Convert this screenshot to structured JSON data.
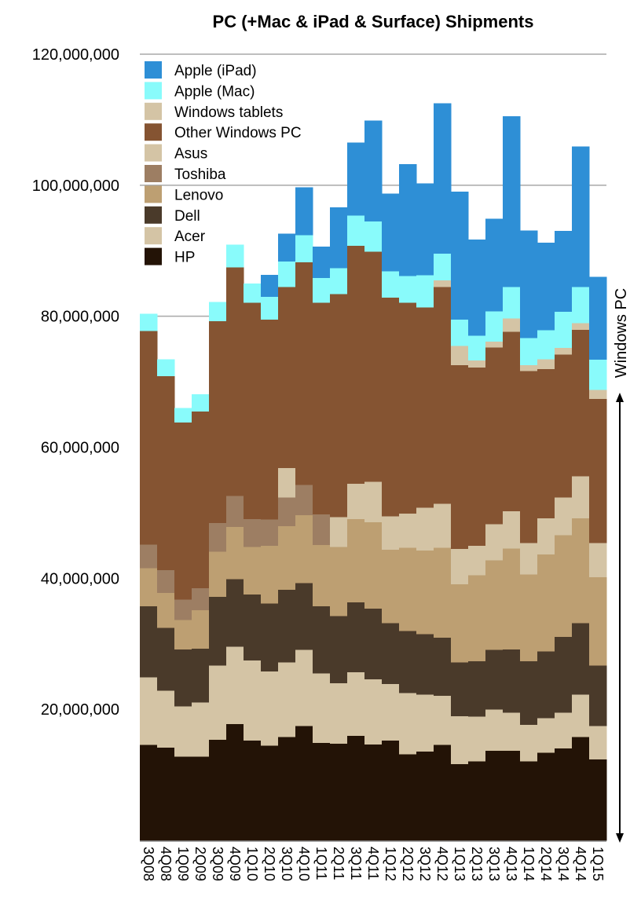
{
  "chart_data": {
    "type": "bar",
    "stacked": true,
    "title": "PC (+Mac & iPad & Surface) Shipments",
    "xlabel": "",
    "ylabel": "",
    "ylim": [
      0,
      120000000
    ],
    "yticks": [
      20000000,
      40000000,
      60000000,
      80000000,
      100000000,
      120000000
    ],
    "ytick_labels": [
      "20,000,000",
      "40,000,000",
      "60,000,000",
      "80,000,000",
      "100,000,000",
      "120,000,000"
    ],
    "grid": true,
    "legend_position": "top-left",
    "categories": [
      "3Q08",
      "4Q08",
      "1Q09",
      "2Q09",
      "3Q09",
      "4Q09",
      "1Q10",
      "2Q10",
      "3Q10",
      "4Q10",
      "1Q11",
      "2Q11",
      "3Q11",
      "4Q11",
      "1Q12",
      "2Q12",
      "3Q12",
      "4Q12",
      "1Q13",
      "2Q13",
      "3Q13",
      "4Q13",
      "1Q14",
      "2Q14",
      "3Q14",
      "4Q14",
      "1Q15"
    ],
    "series": [
      {
        "name": "HP",
        "color": "#231306",
        "values": [
          14600000,
          14200000,
          12800000,
          12800000,
          15400000,
          17800000,
          15300000,
          14500000,
          15800000,
          17500000,
          14900000,
          14800000,
          16000000,
          14700000,
          15300000,
          13200000,
          13600000,
          14600000,
          11700000,
          12100000,
          13700000,
          13700000,
          12100000,
          13400000,
          14100000,
          15800000,
          12400000
        ]
      },
      {
        "name": "Acer",
        "color": "#d4c4a5",
        "values": [
          10300000,
          8700000,
          7700000,
          8300000,
          11300000,
          11800000,
          12200000,
          11300000,
          11400000,
          11600000,
          10600000,
          9200000,
          9700000,
          9900000,
          8600000,
          9300000,
          8700000,
          7500000,
          7300000,
          6800000,
          6300000,
          5800000,
          5600000,
          5300000,
          5400000,
          6500000,
          5100000
        ]
      },
      {
        "name": "Dell",
        "color": "#4a3a2a",
        "values": [
          10900000,
          9600000,
          8700000,
          8200000,
          10500000,
          10300000,
          10100000,
          10400000,
          11100000,
          10200000,
          10300000,
          10300000,
          10700000,
          10800000,
          9300000,
          9500000,
          9200000,
          8900000,
          8200000,
          8500000,
          9100000,
          9700000,
          9700000,
          10200000,
          11600000,
          10900000,
          9200000
        ]
      },
      {
        "name": "Lenovo",
        "color": "#bd9f72",
        "values": [
          5800000,
          5300000,
          4500000,
          5900000,
          6900000,
          8000000,
          7200000,
          8800000,
          9700000,
          10400000,
          9300000,
          10500000,
          12700000,
          13200000,
          11200000,
          12700000,
          12800000,
          13700000,
          11900000,
          13100000,
          13700000,
          15400000,
          13200000,
          14800000,
          15500000,
          16000000,
          13500000
        ]
      },
      {
        "name": "Toshiba",
        "color": "#9d7e63",
        "values": [
          3600000,
          3500000,
          3100000,
          3300000,
          4400000,
          4700000,
          4300000,
          4000000,
          4400000,
          4600000,
          4700000,
          0,
          0,
          0,
          0,
          0,
          0,
          0,
          0,
          0,
          0,
          0,
          0,
          0,
          0,
          0,
          0
        ]
      },
      {
        "name": "Asus",
        "color": "#d4c4a5",
        "values": [
          0,
          0,
          0,
          0,
          0,
          0,
          0,
          0,
          4500000,
          0,
          0,
          4600000,
          5400000,
          6200000,
          5100000,
          5200000,
          6500000,
          6700000,
          5400000,
          4500000,
          5500000,
          5700000,
          4800000,
          5500000,
          5800000,
          6400000,
          5200000
        ]
      },
      {
        "name": "Other Windows PC",
        "color": "#855432",
        "values": [
          32600000,
          29600000,
          27000000,
          27000000,
          30800000,
          34900000,
          33000000,
          30500000,
          27600000,
          34000000,
          32300000,
          34000000,
          36300000,
          35100000,
          33400000,
          32200000,
          30600000,
          33100000,
          28100000,
          27200000,
          27000000,
          27400000,
          26300000,
          22800000,
          21800000,
          22400000,
          22000000
        ]
      },
      {
        "name": "Windows tablets",
        "color": "#d4c4a5",
        "values": [
          0,
          0,
          0,
          0,
          0,
          0,
          0,
          0,
          0,
          0,
          0,
          0,
          0,
          0,
          0,
          0,
          0,
          1000000,
          2900000,
          1100000,
          900000,
          2000000,
          900000,
          1500000,
          1000000,
          1000000,
          1400000
        ]
      },
      {
        "name": "Apple (Mac)",
        "color": "#89fbfb",
        "values": [
          2600000,
          2500000,
          2200000,
          2600000,
          2900000,
          3400000,
          2900000,
          3500000,
          3900000,
          4100000,
          3800000,
          4000000,
          4600000,
          4600000,
          4000000,
          4100000,
          4900000,
          4100000,
          4000000,
          3800000,
          4600000,
          4800000,
          4100000,
          4400000,
          5500000,
          5500000,
          4600000
        ]
      },
      {
        "name": "Apple (iPad)",
        "color": "#2e8fd6",
        "values": [
          0,
          0,
          0,
          0,
          0,
          0,
          0,
          3300000,
          4200000,
          7300000,
          4700000,
          9200000,
          11100000,
          15400000,
          11800000,
          17000000,
          14000000,
          22900000,
          19500000,
          14600000,
          14100000,
          26000000,
          16400000,
          13300000,
          12300000,
          21400000,
          12600000
        ]
      }
    ],
    "legend_order": [
      "Apple (iPad)",
      "Apple (Mac)",
      "Windows tablets",
      "Other Windows PC",
      "Asus",
      "Toshiba",
      "Lenovo",
      "Dell",
      "Acer",
      "HP"
    ],
    "annotation": "Windows PC"
  }
}
